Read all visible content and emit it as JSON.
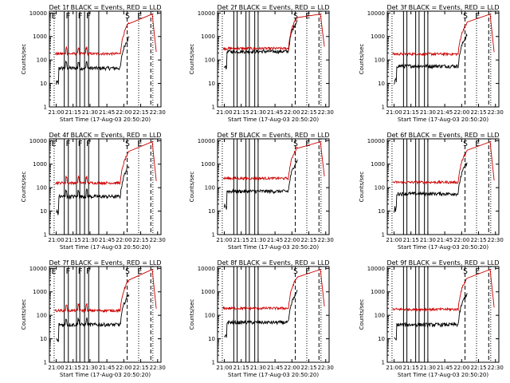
{
  "chart_data": [
    {
      "type": "line",
      "detector": "1f",
      "title": "Det 1f BLACK = Events, RED = LLD",
      "ylabel": "Counts/sec",
      "xlabel": "Start Time (17-Aug-03 20:50:20)",
      "xlim": [
        20.83,
        22.5
      ],
      "ylim": [
        1,
        12000
      ],
      "xticks": [
        "21:00",
        "21:15",
        "21:30",
        "21:45",
        "22:00",
        "22:15",
        "22:30"
      ],
      "yticks": [
        "1",
        "10",
        "100",
        "1000",
        "10000"
      ],
      "series": [
        {
          "name": "Events",
          "color": "#000000",
          "level": 45
        },
        {
          "name": "LLD",
          "color": "#cc0000",
          "level": 185
        }
      ],
      "marker_labels": [
        "E",
        "F",
        "F",
        "F",
        "S",
        "E"
      ]
    },
    {
      "type": "line",
      "detector": "2f",
      "title": "Det 2f BLACK = Events, RED = LLD",
      "ylabel": "Counts/sec",
      "xlabel": "Start Time (17-Aug-03 20:50:20)",
      "xlim": [
        20.83,
        22.5
      ],
      "ylim": [
        1,
        12000
      ],
      "xticks": [
        "21:00",
        "21:15",
        "21:30",
        "21:45",
        "22:00",
        "22:15",
        "22:30"
      ],
      "yticks": [
        "1",
        "10",
        "100",
        "1000",
        "10000"
      ],
      "series": [
        {
          "name": "Events",
          "color": "#000000",
          "level": 230
        },
        {
          "name": "LLD",
          "color": "#cc0000",
          "level": 310
        }
      ],
      "marker_labels": [
        "S",
        "E"
      ]
    },
    {
      "type": "line",
      "detector": "3f",
      "title": "Det 3f BLACK = Events, RED = LLD",
      "ylabel": "Counts/sec",
      "xlabel": "Start Time (17-Aug-03 20:50:20)",
      "xlim": [
        20.83,
        22.5
      ],
      "ylim": [
        1,
        12000
      ],
      "xticks": [
        "21:00",
        "21:15",
        "21:30",
        "21:45",
        "22:00",
        "22:15",
        "22:30"
      ],
      "yticks": [
        "1",
        "10",
        "100",
        "1000",
        "10000"
      ],
      "series": [
        {
          "name": "Events",
          "color": "#000000",
          "level": 55
        },
        {
          "name": "LLD",
          "color": "#cc0000",
          "level": 180
        }
      ],
      "marker_labels": [
        "S",
        "E"
      ]
    },
    {
      "type": "line",
      "detector": "4f",
      "title": "Det 4f BLACK = Events, RED = LLD",
      "ylabel": "Counts/sec",
      "xlabel": "Start Time (17-Aug-03 20:50:20)",
      "xlim": [
        20.83,
        22.5
      ],
      "ylim": [
        1,
        12000
      ],
      "xticks": [
        "21:00",
        "21:15",
        "21:30",
        "21:45",
        "22:00",
        "22:15",
        "22:30"
      ],
      "yticks": [
        "1",
        "10",
        "100",
        "1000",
        "10000"
      ],
      "series": [
        {
          "name": "Events",
          "color": "#000000",
          "level": 42
        },
        {
          "name": "LLD",
          "color": "#cc0000",
          "level": 160
        }
      ],
      "marker_labels": [
        "E",
        "F",
        "F",
        "F",
        "S",
        "E"
      ]
    },
    {
      "type": "line",
      "detector": "5f",
      "title": "Det 5f BLACK = Events, RED = LLD",
      "ylabel": "Counts/sec",
      "xlabel": "Start Time (17-Aug-03 20:50:20)",
      "xlim": [
        20.83,
        22.5
      ],
      "ylim": [
        1,
        12000
      ],
      "xticks": [
        "21:00",
        "21:15",
        "21:30",
        "21:45",
        "22:00",
        "22:15",
        "22:30"
      ],
      "yticks": [
        "1",
        "10",
        "100",
        "1000",
        "10000"
      ],
      "series": [
        {
          "name": "Events",
          "color": "#000000",
          "level": 70
        },
        {
          "name": "LLD",
          "color": "#cc0000",
          "level": 250
        }
      ],
      "marker_labels": [
        "S",
        "E"
      ]
    },
    {
      "type": "line",
      "detector": "6f",
      "title": "Det 6f BLACK = Events, RED = LLD",
      "ylabel": "Counts/sec",
      "xlabel": "Start Time (17-Aug-03 20:50:20)",
      "xlim": [
        20.83,
        22.5
      ],
      "ylim": [
        1,
        12000
      ],
      "xticks": [
        "21:00",
        "21:15",
        "21:30",
        "21:45",
        "22:00",
        "22:15",
        "22:30"
      ],
      "yticks": [
        "1",
        "10",
        "100",
        "1000",
        "10000"
      ],
      "series": [
        {
          "name": "Events",
          "color": "#000000",
          "level": 55
        },
        {
          "name": "LLD",
          "color": "#cc0000",
          "level": 170
        }
      ],
      "marker_labels": [
        "S",
        "E"
      ]
    },
    {
      "type": "line",
      "detector": "7f",
      "title": "Det 7f BLACK = Events, RED = LLD",
      "ylabel": "Counts/sec",
      "xlabel": "Start Time (17-Aug-03 20:50:20)",
      "xlim": [
        20.83,
        22.5
      ],
      "ylim": [
        1,
        12000
      ],
      "xticks": [
        "21:00",
        "21:15",
        "21:30",
        "21:45",
        "22:00",
        "22:15",
        "22:30"
      ],
      "yticks": [
        "1",
        "10",
        "100",
        "1000",
        "10000"
      ],
      "series": [
        {
          "name": "Events",
          "color": "#000000",
          "level": 40
        },
        {
          "name": "LLD",
          "color": "#cc0000",
          "level": 160
        }
      ],
      "marker_labels": [
        "E",
        "F",
        "F",
        "F",
        "S",
        "E"
      ]
    },
    {
      "type": "line",
      "detector": "8f",
      "title": "Det 8f BLACK = Events, RED = LLD",
      "ylabel": "Counts/sec",
      "xlabel": "Start Time (17-Aug-03 20:50:20)",
      "xlim": [
        20.83,
        22.5
      ],
      "ylim": [
        1,
        12000
      ],
      "xticks": [
        "21:00",
        "21:15",
        "21:30",
        "21:45",
        "22:00",
        "22:15",
        "22:30"
      ],
      "yticks": [
        "1",
        "10",
        "100",
        "1000",
        "10000"
      ],
      "series": [
        {
          "name": "Events",
          "color": "#000000",
          "level": 50
        },
        {
          "name": "LLD",
          "color": "#cc0000",
          "level": 200
        }
      ],
      "marker_labels": [
        "S",
        "E"
      ]
    },
    {
      "type": "line",
      "detector": "9f",
      "title": "Det 9f BLACK = Events, RED = LLD",
      "ylabel": "Counts/sec",
      "xlabel": "Start Time (17-Aug-03 20:50:20)",
      "xlim": [
        20.83,
        22.5
      ],
      "ylim": [
        1,
        12000
      ],
      "xticks": [
        "21:00",
        "21:15",
        "21:30",
        "21:45",
        "22:00",
        "22:15",
        "22:30"
      ],
      "yticks": [
        "1",
        "10",
        "100",
        "1000",
        "10000"
      ],
      "series": [
        {
          "name": "Events",
          "color": "#000000",
          "level": 40
        },
        {
          "name": "LLD",
          "color": "#cc0000",
          "level": 180
        }
      ],
      "marker_labels": [
        "S",
        "E"
      ]
    }
  ]
}
